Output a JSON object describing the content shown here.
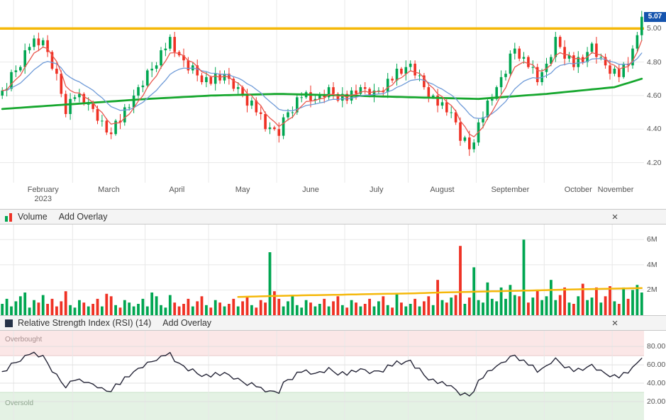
{
  "price_panel": {
    "yaxis_labels": [
      "5.00",
      "4.80",
      "4.60",
      "4.40",
      "4.20"
    ],
    "last_price_label": "5.07",
    "badge_color": "#1554ae"
  },
  "volume_panel": {
    "title": "Volume",
    "add_overlay": "Add Overlay",
    "close": "×",
    "yaxis_labels": [
      "6M",
      "4M",
      "2M"
    ]
  },
  "rsi_panel": {
    "title": "Relative Strength Index (RSI) (14)",
    "add_overlay": "Add Overlay",
    "close": "×",
    "yaxis_labels": [
      "80.00",
      "60.00",
      "40.00",
      "20.00"
    ],
    "overbought_label": "Overbought",
    "oversold_label": "Oversold"
  },
  "chart_data": [
    {
      "id": "price",
      "type": "candlestick",
      "ylim": [
        4.08,
        5.17
      ],
      "yticks": [
        5.0,
        4.8,
        4.6,
        4.4,
        4.2
      ],
      "last_price": 5.07,
      "open0": 4.6,
      "up_color": "#00a651",
      "down_color": "#ef3124",
      "grid_color": "#e8e8e8",
      "wick_extra": [
        0.02,
        0.035,
        0.015,
        0.03,
        0.01,
        0.04,
        0.02
      ],
      "months": [
        {
          "label": "February",
          "year": "2023",
          "bar": 3
        },
        {
          "label": "March",
          "bar": 16
        },
        {
          "label": "April",
          "bar": 32
        },
        {
          "label": "May",
          "bar": 46
        },
        {
          "label": "June",
          "bar": 61
        },
        {
          "label": "July",
          "bar": 76
        },
        {
          "label": "August",
          "bar": 90
        },
        {
          "label": "September",
          "bar": 105
        },
        {
          "label": "October",
          "bar": 120
        },
        {
          "label": "November",
          "bar": 135
        }
      ],
      "closes": [
        4.63,
        4.64,
        4.74,
        4.75,
        4.77,
        4.87,
        4.89,
        4.94,
        4.9,
        4.93,
        4.86,
        4.76,
        4.73,
        4.61,
        4.49,
        4.58,
        4.59,
        4.61,
        4.55,
        4.55,
        4.52,
        4.45,
        4.45,
        4.38,
        4.37,
        4.45,
        4.44,
        4.53,
        4.53,
        4.6,
        4.65,
        4.66,
        4.75,
        4.76,
        4.78,
        4.87,
        4.88,
        4.95,
        4.86,
        4.84,
        4.81,
        4.75,
        4.78,
        4.72,
        4.68,
        4.71,
        4.67,
        4.73,
        4.69,
        4.73,
        4.7,
        4.64,
        4.65,
        4.6,
        4.54,
        4.57,
        4.5,
        4.49,
        4.4,
        4.41,
        4.4,
        4.36,
        4.47,
        4.5,
        4.5,
        4.59,
        4.59,
        4.62,
        4.57,
        4.58,
        4.6,
        4.59,
        4.65,
        4.61,
        4.57,
        4.61,
        4.57,
        4.63,
        4.61,
        4.65,
        4.64,
        4.6,
        4.63,
        4.63,
        4.62,
        4.7,
        4.69,
        4.76,
        4.73,
        4.77,
        4.79,
        4.72,
        4.72,
        4.65,
        4.59,
        4.6,
        4.54,
        4.56,
        4.5,
        4.5,
        4.44,
        4.33,
        4.35,
        4.28,
        4.32,
        4.44,
        4.47,
        4.57,
        4.58,
        4.65,
        4.71,
        4.73,
        4.85,
        4.88,
        4.82,
        4.83,
        4.77,
        4.77,
        4.68,
        4.74,
        4.79,
        4.83,
        4.95,
        4.89,
        4.82,
        4.84,
        4.77,
        4.83,
        4.8,
        4.86,
        4.91,
        4.83,
        4.83,
        4.78,
        4.73,
        4.76,
        4.71,
        4.79,
        4.78,
        4.88,
        4.96,
        5.07
      ],
      "fast_ema": {
        "period": 5,
        "color": "#e9584f"
      },
      "slow_ema": {
        "period": 14,
        "color": "#6f9bd8"
      },
      "long_ma": {
        "bars": [
          0,
          16,
          32,
          46,
          61,
          76,
          90,
          105,
          120,
          135,
          141
        ],
        "values": [
          4.52,
          4.55,
          4.58,
          4.6,
          4.61,
          4.6,
          4.59,
          4.58,
          4.61,
          4.65,
          4.7
        ],
        "color": "#16a72e"
      },
      "hline": {
        "value": 5.0,
        "color": "#f5b80a"
      }
    },
    {
      "id": "volume",
      "type": "bar",
      "unit": "millions",
      "ylim": [
        0,
        7.2
      ],
      "yticks": [
        6,
        4,
        2
      ],
      "values": [
        0.9,
        1.3,
        0.7,
        1.1,
        1.5,
        1.8,
        0.6,
        1.2,
        1.0,
        1.6,
        0.9,
        1.3,
        0.7,
        1.1,
        1.9,
        0.8,
        0.6,
        1.2,
        1.0,
        0.7,
        0.9,
        1.3,
        0.7,
        1.7,
        1.5,
        0.8,
        0.6,
        1.2,
        1.0,
        0.7,
        0.9,
        1.3,
        0.7,
        1.8,
        1.5,
        0.8,
        0.6,
        1.6,
        1.0,
        0.7,
        0.9,
        1.3,
        0.7,
        1.1,
        1.5,
        0.8,
        0.6,
        1.2,
        1.0,
        0.7,
        0.9,
        1.3,
        0.7,
        1.1,
        1.5,
        0.8,
        0.6,
        1.2,
        1.0,
        5.0,
        1.9,
        1.3,
        0.7,
        1.1,
        1.5,
        0.8,
        0.6,
        1.2,
        1.0,
        0.7,
        0.9,
        1.3,
        0.7,
        1.1,
        1.5,
        0.8,
        0.6,
        1.2,
        1.0,
        0.7,
        0.9,
        1.3,
        0.7,
        1.1,
        1.5,
        0.8,
        0.6,
        1.7,
        1.0,
        0.7,
        0.9,
        1.3,
        0.7,
        1.1,
        1.5,
        0.8,
        2.8,
        1.2,
        1.0,
        1.4,
        1.6,
        5.5,
        0.9,
        1.4,
        3.8,
        1.2,
        1.0,
        2.6,
        1.3,
        1.1,
        2.2,
        1.3,
        2.4,
        1.6,
        1.5,
        6.0,
        1.0,
        1.4,
        2.0,
        1.2,
        1.5,
        2.8,
        1.2,
        1.6,
        2.2,
        1.0,
        0.9,
        1.5,
        2.5,
        1.2,
        1.4,
        2.2,
        1.0,
        1.5,
        2.3,
        1.1,
        0.9,
        2.2,
        1.3,
        2.0,
        2.4,
        1.8
      ],
      "ma": {
        "from_bar": 52,
        "color": "#f5b80a",
        "values": [
          1.45,
          1.52,
          1.58,
          1.62,
          1.68,
          1.72,
          1.8,
          1.86,
          1.92,
          1.98,
          2.05,
          2.1,
          2.15
        ]
      }
    },
    {
      "id": "rsi",
      "type": "line",
      "derived_from": "closes",
      "period": 14,
      "ylim": [
        0,
        97
      ],
      "yticks": [
        80,
        60,
        40,
        20
      ],
      "overbought": 70,
      "oversold": 30,
      "seed_gain": 0.02,
      "seed_loss": 0.018,
      "color": "#262638",
      "ob_fill": "#fbe7e7",
      "os_fill": "#e4f2e4",
      "ob_line": "#e8caca",
      "os_line": "#c8e2c8"
    }
  ]
}
